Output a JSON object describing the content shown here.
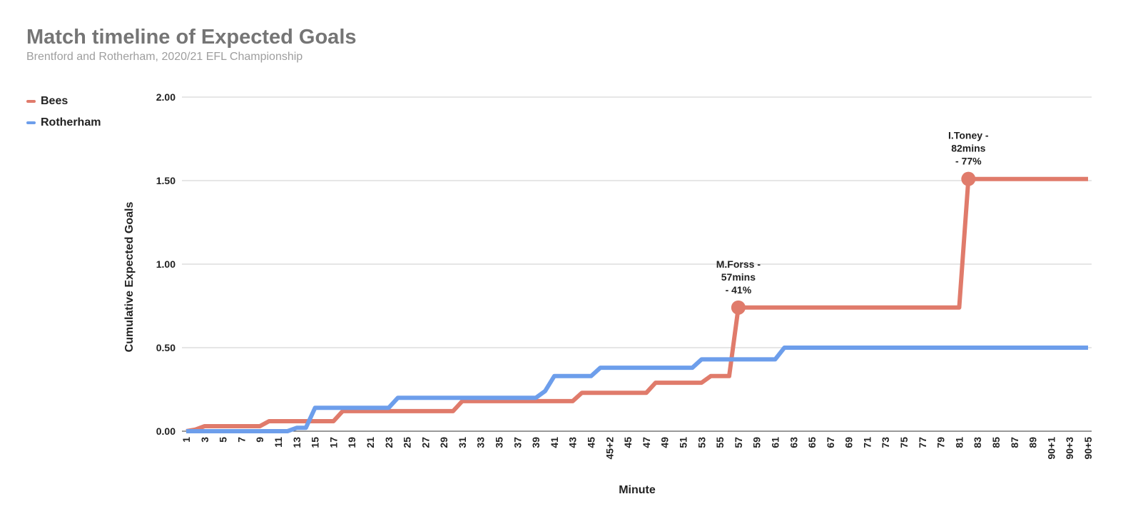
{
  "chart_data": {
    "type": "line",
    "title": "Match timeline of Expected Goals",
    "subtitle": "Brentford and Rotherham, 2020/21 EFL Championship",
    "xlabel": "Minute",
    "ylabel": "Cumulative Expected Goals",
    "ylim": [
      0,
      2
    ],
    "yticks": [
      "0.00",
      "0.50",
      "1.00",
      "1.50",
      "2.00"
    ],
    "grid": true,
    "legend_position": "left",
    "x": [
      "1",
      "2",
      "3",
      "4",
      "5",
      "6",
      "7",
      "8",
      "9",
      "10",
      "11",
      "12",
      "13",
      "14",
      "15",
      "16",
      "17",
      "18",
      "19",
      "20",
      "21",
      "22",
      "23",
      "24",
      "25",
      "26",
      "27",
      "28",
      "29",
      "30",
      "31",
      "32",
      "33",
      "34",
      "35",
      "36",
      "37",
      "38",
      "39",
      "40",
      "41",
      "42",
      "43",
      "44",
      "45",
      "45+1",
      "45+2",
      "46",
      "45",
      "46",
      "47",
      "48",
      "49",
      "50",
      "51",
      "52",
      "53",
      "54",
      "55",
      "56",
      "57",
      "58",
      "59",
      "60",
      "61",
      "62",
      "63",
      "64",
      "65",
      "66",
      "67",
      "68",
      "69",
      "70",
      "71",
      "72",
      "73",
      "74",
      "75",
      "76",
      "77",
      "78",
      "79",
      "80",
      "81",
      "82",
      "83",
      "84",
      "85",
      "86",
      "87",
      "88",
      "89",
      "90",
      "90+1",
      "90+2",
      "90+3",
      "90+4",
      "90+5"
    ],
    "xtick_labels": [
      "1",
      "3",
      "5",
      "7",
      "9",
      "11",
      "13",
      "15",
      "17",
      "19",
      "21",
      "23",
      "25",
      "27",
      "29",
      "31",
      "33",
      "35",
      "37",
      "39",
      "41",
      "43",
      "45",
      "45+2",
      "45",
      "47",
      "49",
      "51",
      "53",
      "55",
      "57",
      "59",
      "61",
      "63",
      "65",
      "67",
      "69",
      "71",
      "73",
      "75",
      "77",
      "79",
      "81",
      "83",
      "85",
      "87",
      "89",
      "90+1",
      "90+3",
      "90+5"
    ],
    "series": [
      {
        "name": "Bees",
        "color": "#e07b6b",
        "values": [
          0,
          0.01,
          0.03,
          0.03,
          0.03,
          0.03,
          0.03,
          0.03,
          0.03,
          0.06,
          0.06,
          0.06,
          0.06,
          0.06,
          0.06,
          0.06,
          0.06,
          0.12,
          0.12,
          0.12,
          0.12,
          0.12,
          0.12,
          0.12,
          0.12,
          0.12,
          0.12,
          0.12,
          0.12,
          0.12,
          0.18,
          0.18,
          0.18,
          0.18,
          0.18,
          0.18,
          0.18,
          0.18,
          0.18,
          0.18,
          0.18,
          0.18,
          0.18,
          0.23,
          0.23,
          0.23,
          0.23,
          0.23,
          0.23,
          0.23,
          0.23,
          0.29,
          0.29,
          0.29,
          0.29,
          0.29,
          0.29,
          0.33,
          0.33,
          0.33,
          0.74,
          0.74,
          0.74,
          0.74,
          0.74,
          0.74,
          0.74,
          0.74,
          0.74,
          0.74,
          0.74,
          0.74,
          0.74,
          0.74,
          0.74,
          0.74,
          0.74,
          0.74,
          0.74,
          0.74,
          0.74,
          0.74,
          0.74,
          0.74,
          0.74,
          1.51,
          1.51,
          1.51,
          1.51,
          1.51,
          1.51,
          1.51,
          1.51,
          1.51,
          1.51,
          1.51,
          1.51,
          1.51,
          1.51
        ]
      },
      {
        "name": "Rotherham",
        "color": "#6d9eeb",
        "values": [
          0,
          0,
          0,
          0,
          0,
          0,
          0,
          0,
          0,
          0,
          0,
          0,
          0.02,
          0.02,
          0.14,
          0.14,
          0.14,
          0.14,
          0.14,
          0.14,
          0.14,
          0.14,
          0.14,
          0.2,
          0.2,
          0.2,
          0.2,
          0.2,
          0.2,
          0.2,
          0.2,
          0.2,
          0.2,
          0.2,
          0.2,
          0.2,
          0.2,
          0.2,
          0.2,
          0.24,
          0.33,
          0.33,
          0.33,
          0.33,
          0.33,
          0.38,
          0.38,
          0.38,
          0.38,
          0.38,
          0.38,
          0.38,
          0.38,
          0.38,
          0.38,
          0.38,
          0.43,
          0.43,
          0.43,
          0.43,
          0.43,
          0.43,
          0.43,
          0.43,
          0.43,
          0.5,
          0.5,
          0.5,
          0.5,
          0.5,
          0.5,
          0.5,
          0.5,
          0.5,
          0.5,
          0.5,
          0.5,
          0.5,
          0.5,
          0.5,
          0.5,
          0.5,
          0.5,
          0.5,
          0.5,
          0.5,
          0.5,
          0.5,
          0.5,
          0.5,
          0.5,
          0.5,
          0.5,
          0.5,
          0.5,
          0.5,
          0.5,
          0.5,
          0.5
        ]
      }
    ],
    "annotations": [
      {
        "series": 0,
        "index": 60,
        "lines": [
          "M.Forss -",
          "57mins",
          "- 41%"
        ]
      },
      {
        "series": 0,
        "index": 85,
        "lines": [
          "I.Toney -",
          "82mins",
          "- 77%"
        ]
      }
    ]
  }
}
